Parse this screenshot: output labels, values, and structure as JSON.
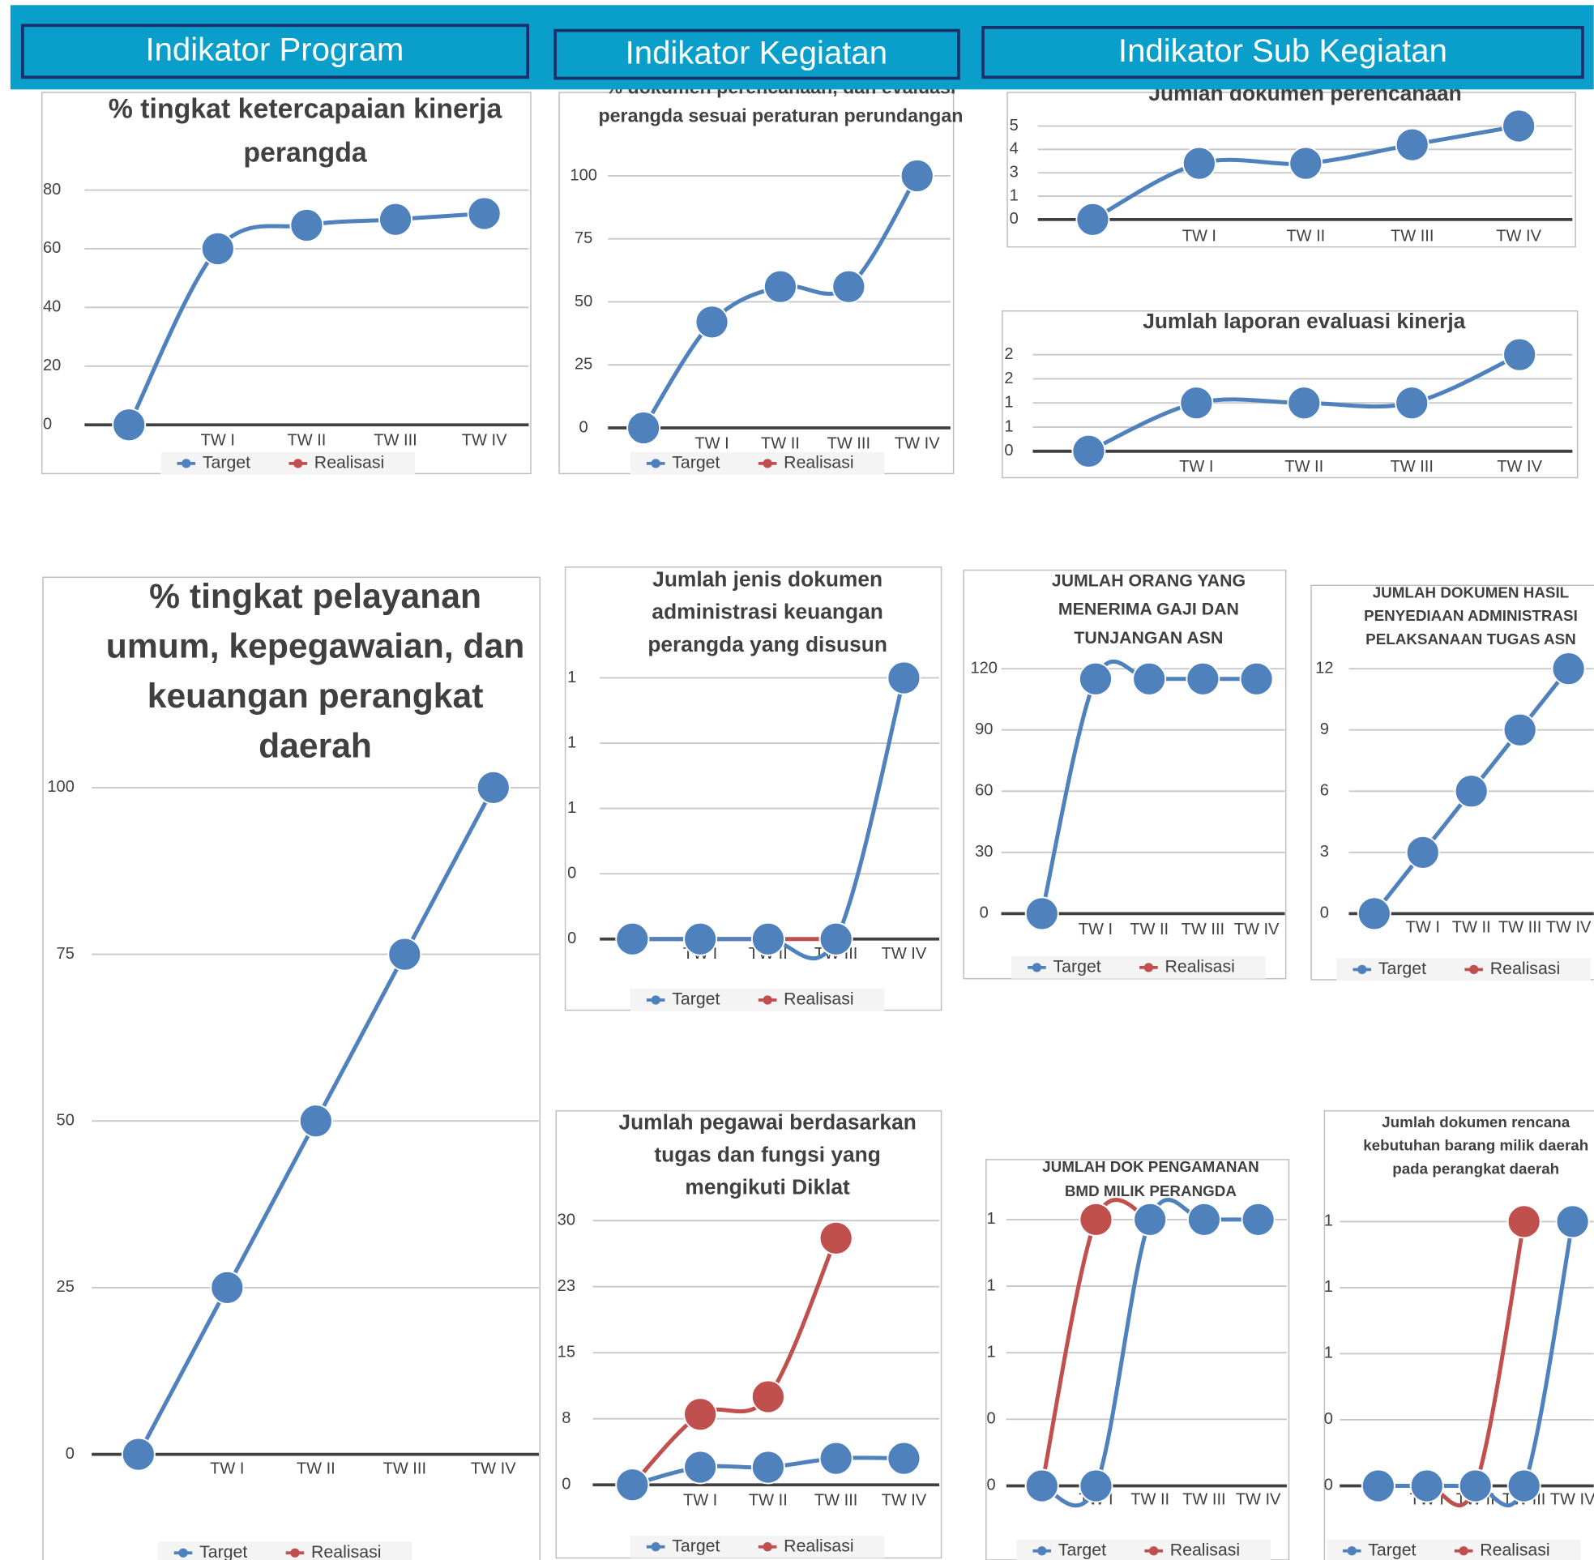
{
  "headers": [
    "Indikator Program",
    "Indikator Kegiatan",
    "Indikator Sub Kegiatan"
  ],
  "chart_data": [
    {
      "type": "line",
      "title": "% tingkat ketercapaian kinerja perangda",
      "categories": [
        null,
        "TW I",
        "TW II",
        "TW III",
        "TW IV"
      ],
      "series": [
        {
          "name": "Target",
          "color": "#4f81bd",
          "values": [
            0,
            60,
            68,
            70,
            72
          ]
        },
        {
          "name": "Realisasi",
          "color": "#c0504d",
          "values": [
            null,
            null,
            null,
            null,
            null
          ]
        }
      ],
      "ylim": [
        0,
        80
      ],
      "yticks": [
        0,
        20,
        40,
        60,
        80
      ],
      "grid": true,
      "legend": "bottom"
    },
    {
      "type": "line",
      "title": "% dokumen perencanaan, dan evaluasi perangda sesuai peraturan perundangan",
      "categories": [
        null,
        "TW I",
        "TW II",
        "TW III",
        "TW IV"
      ],
      "series": [
        {
          "name": "Target",
          "color": "#4f81bd",
          "values": [
            0,
            42,
            56,
            56,
            100
          ]
        },
        {
          "name": "Realisasi",
          "color": "#c0504d",
          "values": [
            null,
            null,
            null,
            null,
            null
          ]
        }
      ],
      "ylim": [
        0,
        100
      ],
      "yticks": [
        0,
        25,
        50,
        75,
        100
      ],
      "grid": true,
      "legend": "bottom"
    },
    {
      "type": "line",
      "title": "Jumlah dokumen perencanaan",
      "categories": [
        null,
        "TW I",
        "TW II",
        "TW III",
        "TW IV"
      ],
      "series": [
        {
          "color": "#4f81bd",
          "values": [
            0,
            3,
            3,
            4,
            5
          ]
        }
      ],
      "ylim": [
        0,
        5
      ],
      "yticks": [
        0,
        {
          "value": 1.25,
          "label": "1"
        },
        {
          "value": 2.5,
          "label": "3"
        },
        {
          "value": 3.75,
          "label": "4"
        },
        5
      ],
      "grid": true
    },
    {
      "type": "line",
      "title": "Jumlah laporan evaluasi kinerja",
      "categories": [
        null,
        "TW I",
        "TW II",
        "TW III",
        "TW IV"
      ],
      "series": [
        {
          "color": "#4f81bd",
          "values": [
            0,
            1,
            1,
            1,
            2
          ]
        }
      ],
      "ylim": [
        0,
        2
      ],
      "yticks": [
        0,
        {
          "value": 0.5,
          "label": "1"
        },
        1,
        {
          "value": 1.5,
          "label": "2"
        },
        2
      ],
      "grid": true
    },
    {
      "type": "line",
      "title": "% tingkat pelayanan umum, kepegawaian, dan keuangan perangkat daerah",
      "categories": [
        null,
        "TW I",
        "TW II",
        "TW III",
        "TW IV"
      ],
      "series": [
        {
          "name": "Target",
          "color": "#4f81bd",
          "values": [
            0,
            25,
            50,
            75,
            100
          ]
        },
        {
          "name": "Realisasi",
          "color": "#c0504d",
          "values": [
            null,
            null,
            null,
            null,
            null
          ]
        }
      ],
      "ylim": [
        0,
        100
      ],
      "yticks": [
        0,
        25,
        50,
        75,
        100
      ],
      "grid": true,
      "legend": "bottom"
    },
    {
      "type": "line",
      "title": "Jumlah jenis dokumen administrasi keuangan perangda yang disusun",
      "categories": [
        null,
        "TW I",
        "TW II",
        "TW III",
        "TW IV"
      ],
      "series": [
        {
          "name": "Target",
          "color": "#4f81bd",
          "values": [
            0,
            0,
            0,
            0,
            1
          ]
        },
        {
          "name": "Realisasi",
          "color": "#c0504d",
          "values": [
            0,
            0,
            0,
            0,
            null
          ]
        }
      ],
      "ylim": [
        0,
        1
      ],
      "yticks": [
        0,
        {
          "value": 0.25,
          "label": "0"
        },
        {
          "value": 0.5,
          "label": "1"
        },
        {
          "value": 0.75,
          "label": "1"
        },
        1
      ],
      "grid": true,
      "legend": "bottom"
    },
    {
      "type": "line",
      "title": "JUMLAH ORANG YANG MENERIMA GAJI DAN TUNJANGAN ASN",
      "categories": [
        null,
        "TW I",
        "TW II",
        "TW III",
        "TW IV"
      ],
      "series": [
        {
          "name": "Target",
          "color": "#4f81bd",
          "values": [
            0,
            115,
            115,
            115,
            115
          ]
        },
        {
          "name": "Realisasi",
          "color": "#c0504d",
          "values": [
            null,
            null,
            null,
            null,
            null
          ]
        }
      ],
      "ylim": [
        0,
        120
      ],
      "yticks": [
        0,
        30,
        60,
        90,
        120
      ],
      "grid": true,
      "legend": "bottom"
    },
    {
      "type": "line",
      "title": "JUMLAH DOKUMEN HASIL PENYEDIAAN ADMINISTRASI PELAKSANAAN TUGAS ASN",
      "categories": [
        null,
        "TW I",
        "TW II",
        "TW III",
        "TW IV"
      ],
      "series": [
        {
          "name": "Target",
          "color": "#4f81bd",
          "values": [
            0,
            3,
            6,
            9,
            12
          ]
        },
        {
          "name": "Realisasi",
          "color": "#c0504d",
          "values": [
            null,
            null,
            null,
            null,
            null
          ]
        }
      ],
      "ylim": [
        0,
        12
      ],
      "yticks": [
        0,
        3,
        6,
        9,
        12
      ],
      "grid": true,
      "legend": "bottom"
    },
    {
      "type": "line",
      "title": "Jumlah pegawai berdasarkan tugas dan fungsi yang mengikuti Diklat",
      "categories": [
        null,
        "TW I",
        "TW II",
        "TW III",
        "TW IV"
      ],
      "series": [
        {
          "name": "Target",
          "color": "#4f81bd",
          "values": [
            0,
            2,
            2,
            3,
            3
          ]
        },
        {
          "name": "Realisasi",
          "color": "#c0504d",
          "values": [
            0,
            8,
            10,
            28,
            null
          ]
        }
      ],
      "ylim": [
        0,
        30
      ],
      "yticks": [
        0,
        {
          "value": 7.5,
          "label": "8"
        },
        15,
        {
          "value": 22.5,
          "label": "23"
        },
        30
      ],
      "grid": true,
      "legend": "bottom"
    },
    {
      "type": "line",
      "title": "JUMLAH DOK PENGAMANAN BMD MILIK PERANGDA",
      "categories": [
        null,
        "TW I",
        "TW II",
        "TW III",
        "TW IV"
      ],
      "series": [
        {
          "name": "Target",
          "color": "#4f81bd",
          "values": [
            0,
            0,
            1,
            1,
            1
          ]
        },
        {
          "name": "Realisasi",
          "color": "#c0504d",
          "values": [
            0,
            1,
            1,
            null,
            null
          ]
        }
      ],
      "ylim": [
        0,
        1
      ],
      "yticks": [
        0,
        {
          "value": 0.25,
          "label": "0"
        },
        {
          "value": 0.5,
          "label": "1"
        },
        {
          "value": 0.75,
          "label": "1"
        },
        1
      ],
      "grid": true,
      "legend": "bottom"
    },
    {
      "type": "line",
      "title": "Jumlah dokumen rencana kebutuhan barang milik daerah pada perangkat daerah",
      "categories": [
        null,
        "TW I",
        "TW II",
        "TW III",
        "TW IV"
      ],
      "series": [
        {
          "name": "Target",
          "color": "#4f81bd",
          "values": [
            0,
            0,
            0,
            0,
            1
          ]
        },
        {
          "name": "Realisasi",
          "color": "#c0504d",
          "values": [
            0,
            0,
            0,
            1,
            null
          ]
        }
      ],
      "ylim": [
        0,
        1
      ],
      "yticks": [
        0,
        {
          "value": 0.25,
          "label": "0"
        },
        {
          "value": 0.5,
          "label": "1"
        },
        {
          "value": 0.75,
          "label": "1"
        },
        1
      ],
      "grid": true,
      "legend": "bottom"
    }
  ]
}
